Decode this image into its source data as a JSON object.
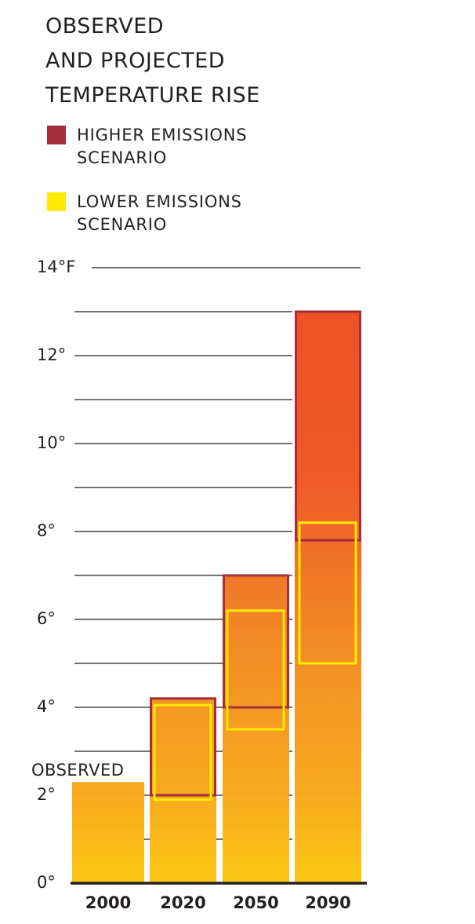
{
  "chart_data": {
    "type": "range-bar",
    "title": "OBSERVED\nAND PROJECTED\nTEMPERATURE RISE",
    "categories": [
      "2000",
      "2020",
      "2050",
      "2090"
    ],
    "observed": {
      "label": "OBSERVED",
      "values": [
        2.3,
        null,
        null,
        null
      ]
    },
    "series": [
      {
        "name": "HIGHER EMISSIONS\nSCENARIO",
        "color": "#a52c3b",
        "low": [
          null,
          2.0,
          4.0,
          7.8
        ],
        "high": [
          null,
          4.2,
          7.0,
          13.0
        ]
      },
      {
        "name": "LOWER EMISSIONS\nSCENARIO",
        "color": "#ffea00",
        "low": [
          null,
          1.9,
          3.5,
          5.0
        ],
        "high": [
          null,
          4.05,
          6.2,
          8.2
        ]
      }
    ],
    "ylim": [
      0,
      14
    ],
    "yticks": [
      {
        "value": 0,
        "label": "0°"
      },
      {
        "value": 2,
        "label": "2°"
      },
      {
        "value": 4,
        "label": "4°"
      },
      {
        "value": 6,
        "label": "6°"
      },
      {
        "value": 8,
        "label": "8°"
      },
      {
        "value": 10,
        "label": "10°"
      },
      {
        "value": 12,
        "label": "12°"
      },
      {
        "value": 14,
        "label": "14°F"
      }
    ],
    "minor_ticks": [
      1,
      3,
      5,
      7,
      9,
      11,
      13
    ],
    "grid": true
  }
}
